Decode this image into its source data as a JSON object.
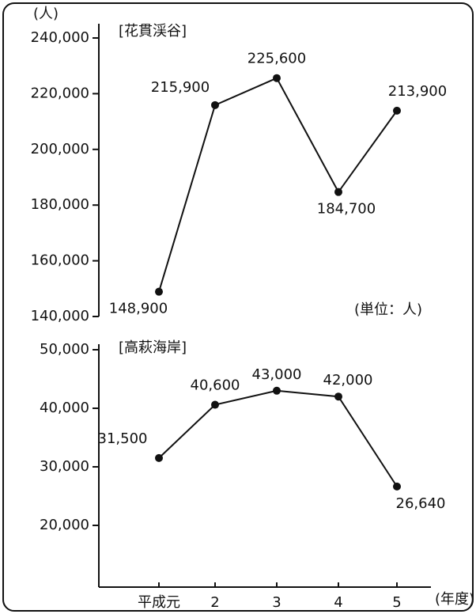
{
  "chart_data": [
    {
      "type": "line",
      "label": "[花貫渓谷]",
      "y_label": "(人)",
      "note": "(単位：人)",
      "ylim": [
        140000,
        240000
      ],
      "yticks": [
        {
          "value": 140000,
          "label": "140,000"
        },
        {
          "value": 160000,
          "label": "160,000"
        },
        {
          "value": 180000,
          "label": "180,000"
        },
        {
          "value": 200000,
          "label": "200,000"
        },
        {
          "value": 220000,
          "label": "220,000"
        },
        {
          "value": 240000,
          "label": "240,000"
        }
      ],
      "series": [
        {
          "color": "#111111",
          "values": [
            148900,
            215900,
            225600,
            184700,
            213900
          ],
          "value_labels": [
            "148,900",
            "215,900",
            "225,600",
            "184,700",
            "213,900"
          ]
        }
      ]
    },
    {
      "type": "line",
      "label": "[高萩海岸]",
      "x_label": "(年度)",
      "categories": [
        "平成元",
        "2",
        "3",
        "4",
        "5"
      ],
      "ylim": [
        10000,
        50000
      ],
      "yticks": [
        {
          "value": 20000,
          "label": "20,000"
        },
        {
          "value": 30000,
          "label": "30,000"
        },
        {
          "value": 40000,
          "label": "40,000"
        },
        {
          "value": 50000,
          "label": "50,000"
        }
      ],
      "series": [
        {
          "color": "#111111",
          "values": [
            31500,
            40600,
            43000,
            42000,
            26640
          ],
          "value_labels": [
            "31,500",
            "40,600",
            "43,000",
            "42,000",
            "26,640"
          ]
        }
      ]
    }
  ]
}
